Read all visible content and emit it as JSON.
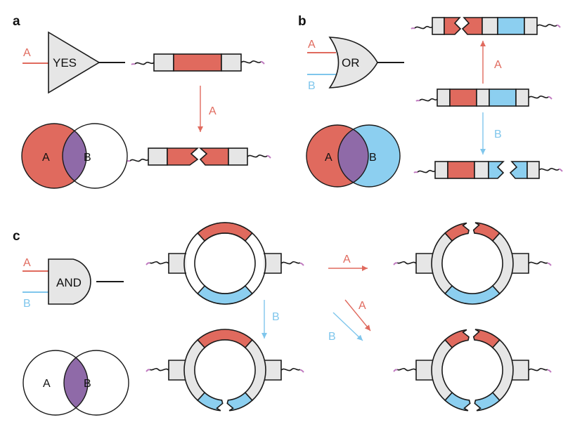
{
  "panels": {
    "a": {
      "letter": "a",
      "gate_label": "YES",
      "input_a": "A",
      "set_a": "A",
      "set_b": "B",
      "arrow_label": "A"
    },
    "b": {
      "letter": "b",
      "gate_label": "OR",
      "input_a": "A",
      "input_b": "B",
      "set_a": "A",
      "set_b": "B",
      "arrow_up_label": "A",
      "arrow_down_label": "B"
    },
    "c": {
      "letter": "c",
      "gate_label": "AND",
      "input_a": "A",
      "input_b": "B",
      "set_a": "A",
      "set_b": "B",
      "arrow_right_label": "A",
      "arrow_down_label": "B",
      "arrow_diag_a_label": "A",
      "arrow_diag_b_label": "B"
    }
  },
  "colors": {
    "red": "#e06a5e",
    "blue": "#8ccff0",
    "grey": "#e6e6e6",
    "purple": "#8f6aa8",
    "tail": "#c07ac0",
    "line": "#1a1a1a",
    "arrow_red": "#e06a5e",
    "arrow_blue": "#7fc6ec"
  }
}
